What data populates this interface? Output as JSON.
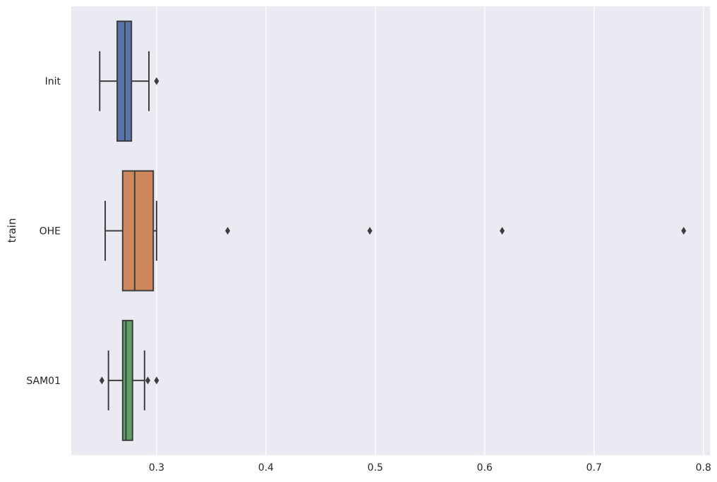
{
  "chart_data": {
    "type": "boxplot",
    "orientation": "horizontal",
    "ylabel": "train",
    "xlabel": "",
    "xlim": [
      0.222,
      0.806
    ],
    "xticks": [
      0.3,
      0.4,
      0.5,
      0.6,
      0.7,
      0.8
    ],
    "xtick_labels": [
      "0.3",
      "0.4",
      "0.5",
      "0.6",
      "0.7",
      "0.8"
    ],
    "grid": true,
    "categories": [
      "Init",
      "OHE",
      "SAM01"
    ],
    "colors": [
      "#5875ab",
      "#cf875e",
      "#5f9f68"
    ],
    "boxes": [
      {
        "name": "Init",
        "whisker_low": 0.248,
        "q1": 0.264,
        "median": 0.271,
        "q3": 0.277,
        "whisker_high": 0.293,
        "outliers": [
          0.3
        ]
      },
      {
        "name": "OHE",
        "whisker_low": 0.253,
        "q1": 0.269,
        "median": 0.28,
        "q3": 0.297,
        "whisker_high": 0.3,
        "outliers": [
          0.365,
          0.495,
          0.616,
          0.782
        ]
      },
      {
        "name": "SAM01",
        "whisker_low": 0.256,
        "q1": 0.269,
        "median": 0.272,
        "q3": 0.278,
        "whisker_high": 0.289,
        "outliers": [
          0.25,
          0.292,
          0.3
        ]
      }
    ]
  }
}
